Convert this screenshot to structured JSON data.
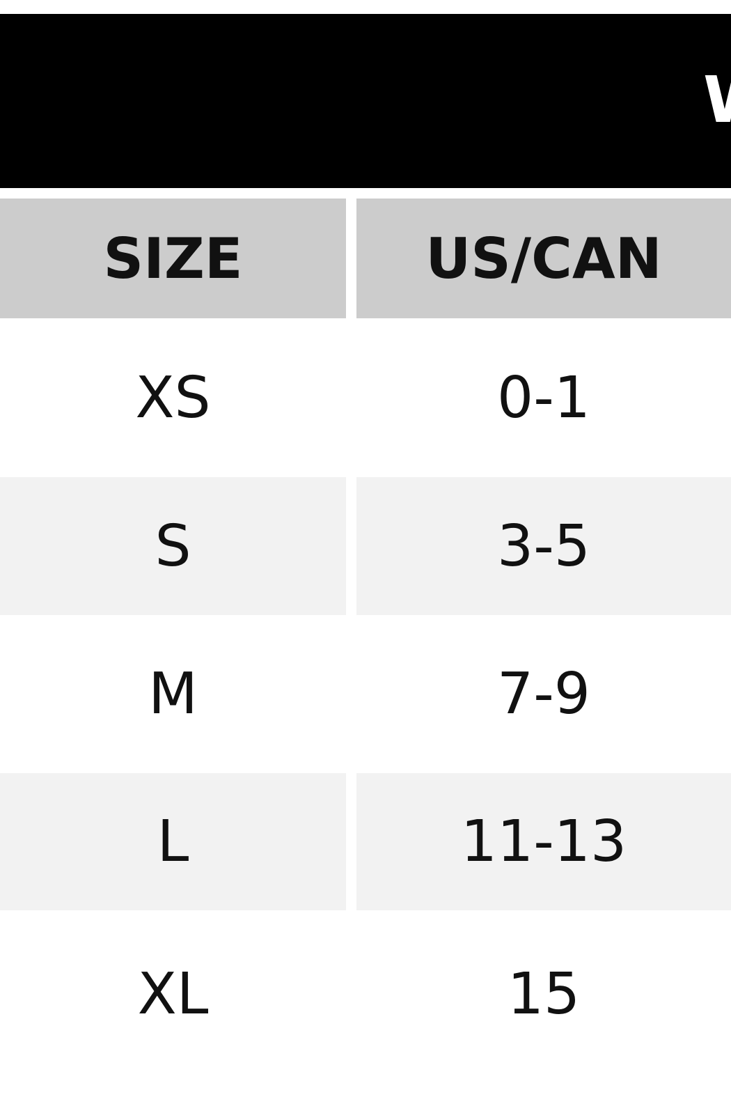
{
  "title": "W",
  "table": {
    "headers": [
      "SIZE",
      "US/CAN"
    ],
    "rows": [
      {
        "size": "XS",
        "us_can": "0-1"
      },
      {
        "size": "S",
        "us_can": "3-5"
      },
      {
        "size": "M",
        "us_can": "7-9"
      },
      {
        "size": "L",
        "us_can": "11-13"
      },
      {
        "size": "XL",
        "us_can": "15"
      }
    ]
  },
  "colors": {
    "title_bg": "#000000",
    "header_bg": "#cccccc",
    "alt_row_bg": "#f2f2f2"
  }
}
